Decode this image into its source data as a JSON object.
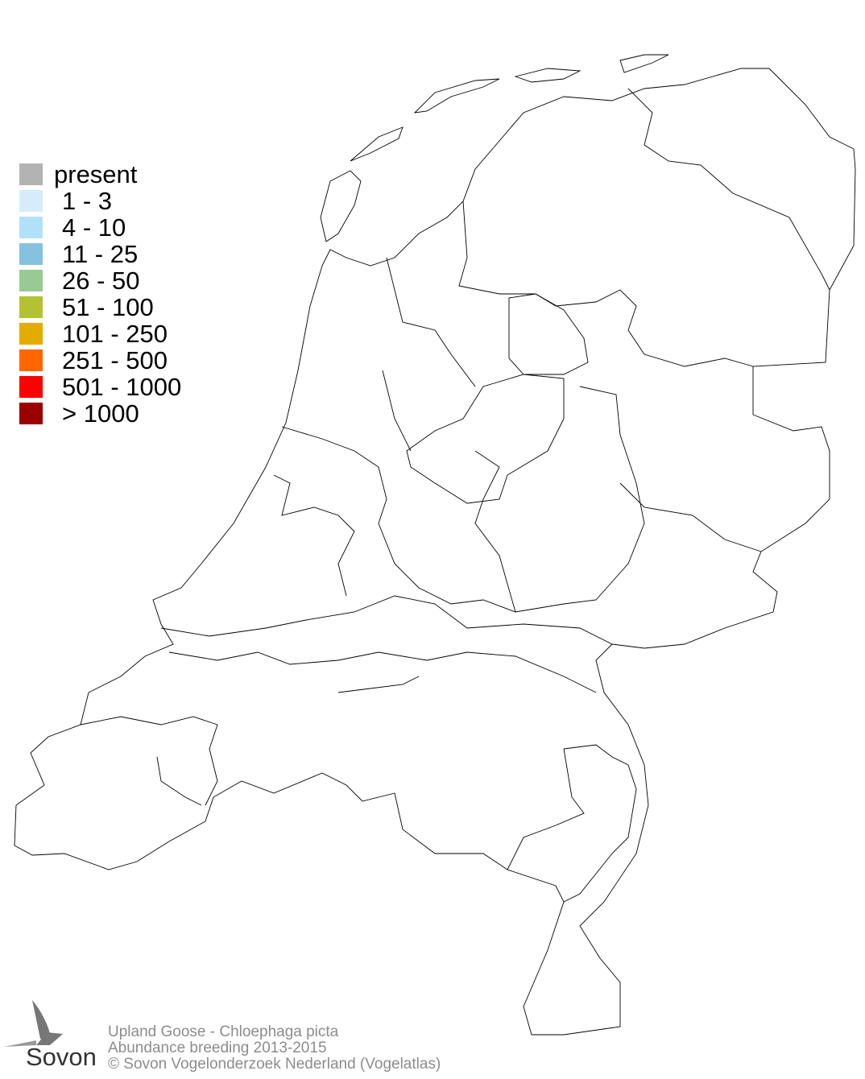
{
  "legend": {
    "items": [
      {
        "label": "present",
        "color": "#b3b3b3"
      },
      {
        "label": "1 - 3",
        "color": "#d6ecfa"
      },
      {
        "label": "4 - 10",
        "color": "#b1e1f9"
      },
      {
        "label": "11 - 25",
        "color": "#86c2e0"
      },
      {
        "label": "26 - 50",
        "color": "#98cb94"
      },
      {
        "label": "51 - 100",
        "color": "#b3c233"
      },
      {
        "label": "101 - 250",
        "color": "#e3ad00"
      },
      {
        "label": "251 - 500",
        "color": "#ff6600"
      },
      {
        "label": "501 - 1000",
        "color": "#ff0000"
      },
      {
        "label": "> 1000",
        "color": "#9b0000"
      }
    ]
  },
  "footer": {
    "species": "Upland Goose - Chloephaga picta",
    "subtitle": "Abundance breeding 2013-2015",
    "copyright": "© Sovon Vogelonderzoek Nederland (Vogelatlas)"
  },
  "logo": {
    "text": "Sovon"
  }
}
